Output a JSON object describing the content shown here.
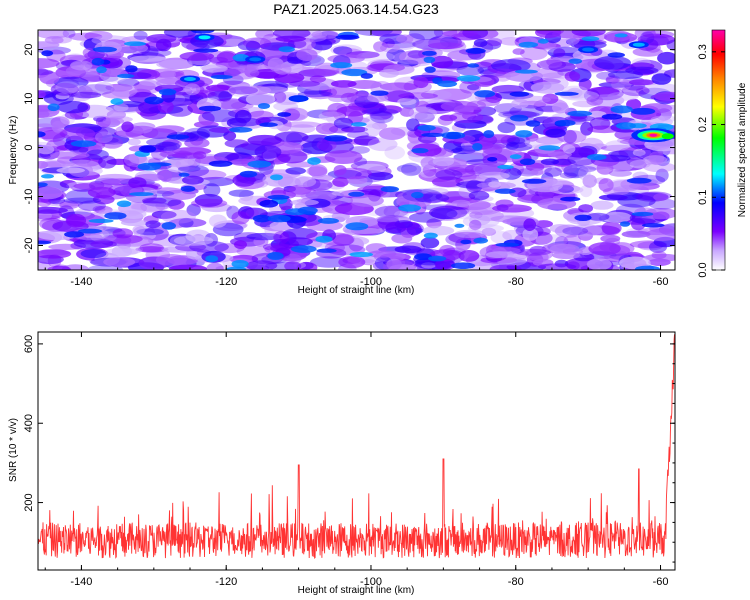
{
  "title": "PAZ1.2025.063.14.54.G23",
  "chart_data": [
    {
      "type": "heatmap",
      "xlabel": "Height of straight line (km)",
      "ylabel": "Frequency (Hz)",
      "xlim": [
        -146,
        -58
      ],
      "ylim": [
        -25,
        24
      ],
      "xticks": [
        -140,
        -120,
        -100,
        -80,
        -60
      ],
      "yticks": [
        -20,
        -10,
        0,
        10,
        20
      ],
      "colorbar": {
        "label": "Normalized spectral amplitude",
        "range": [
          0.0,
          0.33
        ],
        "ticks": [
          0.0,
          0.1,
          0.2,
          0.3
        ],
        "colors": [
          "#ffffff",
          "#7b00ff",
          "#0000ff",
          "#00ffff",
          "#00ff00",
          "#ffff00",
          "#ff8000",
          "#ff0000",
          "#ff00aa"
        ]
      },
      "peak": {
        "x": -61,
        "y": 2.5,
        "value": 0.33
      },
      "background_level": [
        0.02,
        0.08
      ],
      "scattered_maxima": [
        {
          "x": -123,
          "y": 22.5,
          "value": 0.13
        },
        {
          "x": -125,
          "y": 14,
          "value": 0.12
        },
        {
          "x": -116,
          "y": 18,
          "value": 0.11
        },
        {
          "x": -70,
          "y": 20,
          "value": 0.11
        },
        {
          "x": -63,
          "y": 21,
          "value": 0.12
        },
        {
          "x": -110,
          "y": 10,
          "value": 0.1
        }
      ]
    },
    {
      "type": "line",
      "xlabel": "Height of straight line (km)",
      "ylabel": "SNR (10 * v/v)",
      "xlim": [
        -146,
        -58
      ],
      "ylim": [
        30,
        630
      ],
      "xticks": [
        -140,
        -120,
        -100,
        -80,
        -60
      ],
      "yticks": [
        200,
        400,
        600
      ],
      "color": "#ff3333",
      "baseline_mean": 105,
      "noise_range": [
        50,
        310
      ],
      "notable_peaks": [
        {
          "x": -110,
          "y": 295
        },
        {
          "x": -90,
          "y": 310
        },
        {
          "x": -63,
          "y": 285
        },
        {
          "x": -58.5,
          "y": 620
        }
      ]
    }
  ]
}
